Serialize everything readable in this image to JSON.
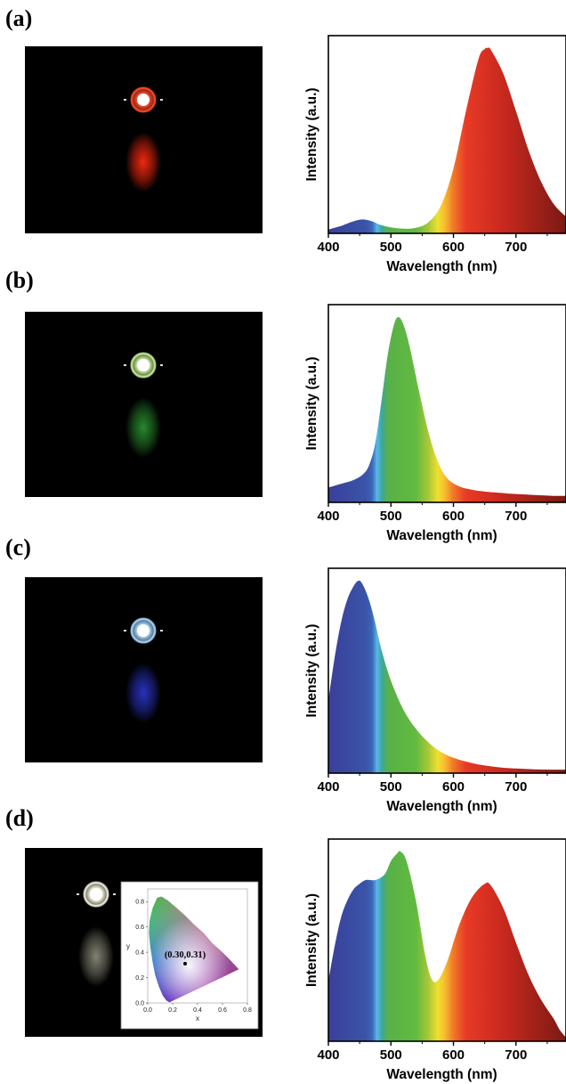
{
  "panels": [
    {
      "label": "(a)",
      "photo": {
        "emitter_color": "#ff4a2a",
        "glow_color": "#ff2a10",
        "description_icon": "red-led-photo"
      },
      "chart_data": {
        "type": "area",
        "xlabel": "Wavelength (nm)",
        "ylabel": "Intensity (a.u.)",
        "xlim": [
          400,
          780
        ],
        "ylim": [
          0,
          1
        ],
        "xticks": [
          400,
          500,
          600,
          700
        ],
        "yticks": [],
        "x": [
          400,
          420,
          440,
          455,
          470,
          480,
          490,
          500,
          520,
          540,
          560,
          580,
          600,
          620,
          640,
          650,
          655,
          660,
          680,
          700,
          720,
          740,
          760,
          780
        ],
        "y": [
          0.02,
          0.04,
          0.065,
          0.075,
          0.065,
          0.05,
          0.04,
          0.032,
          0.025,
          0.03,
          0.06,
          0.15,
          0.35,
          0.66,
          0.94,
          0.995,
          1.0,
          0.99,
          0.86,
          0.66,
          0.45,
          0.28,
          0.16,
          0.09
        ],
        "fill": "spectral"
      }
    },
    {
      "label": "(b)",
      "photo": {
        "emitter_color": "#c8f09a",
        "glow_color": "#2a9030",
        "description_icon": "green-led-photo"
      },
      "chart_data": {
        "type": "area",
        "xlabel": "Wavelength (nm)",
        "ylabel": "Intensity (a.u.)",
        "xlim": [
          400,
          780
        ],
        "ylim": [
          0,
          1
        ],
        "xticks": [
          400,
          500,
          600,
          700
        ],
        "yticks": [],
        "x": [
          400,
          420,
          440,
          455,
          465,
          475,
          485,
          495,
          505,
          512,
          520,
          530,
          545,
          560,
          575,
          590,
          610,
          630,
          650,
          680,
          700,
          730,
          760,
          780
        ],
        "y": [
          0.08,
          0.1,
          0.12,
          0.15,
          0.2,
          0.32,
          0.55,
          0.8,
          0.96,
          1.0,
          0.96,
          0.84,
          0.6,
          0.38,
          0.22,
          0.13,
          0.085,
          0.068,
          0.058,
          0.05,
          0.045,
          0.04,
          0.035,
          0.035
        ],
        "fill": "spectral"
      }
    },
    {
      "label": "(c)",
      "photo": {
        "emitter_color": "#a8d8ff",
        "glow_color": "#2a35c8",
        "description_icon": "blue-led-photo"
      },
      "chart_data": {
        "type": "area",
        "xlabel": "Wavelength (nm)",
        "ylabel": "Intensity (a.u.)",
        "xlim": [
          400,
          780
        ],
        "ylim": [
          0,
          1
        ],
        "xticks": [
          400,
          500,
          600,
          700
        ],
        "yticks": [],
        "x": [
          400,
          410,
          420,
          430,
          440,
          448,
          455,
          465,
          475,
          485,
          500,
          520,
          540,
          560,
          580,
          600,
          620,
          640,
          660,
          680,
          700,
          730,
          760,
          780
        ],
        "y": [
          0.38,
          0.6,
          0.78,
          0.9,
          0.97,
          1.0,
          0.98,
          0.9,
          0.78,
          0.64,
          0.48,
          0.33,
          0.23,
          0.16,
          0.11,
          0.08,
          0.06,
          0.045,
          0.035,
          0.028,
          0.024,
          0.02,
          0.018,
          0.018
        ],
        "fill": "spectral"
      }
    },
    {
      "label": "(d)",
      "photo": {
        "emitter_color": "#f5f0dc",
        "glow_color": "#8a8a7a",
        "description_icon": "white-led-photo"
      },
      "cie_inset": {
        "type": "scatter",
        "xlabel": "x",
        "ylabel": "y",
        "xlim": [
          0,
          0.8
        ],
        "ylim": [
          0,
          0.9
        ],
        "xticks": [
          "0.0",
          "0.2",
          "0.4",
          "0.6",
          "0.8"
        ],
        "yticks": [
          "0.0",
          "0.2",
          "0.4",
          "0.6",
          "0.8"
        ],
        "point": {
          "x": 0.3,
          "y": 0.31,
          "label": "(0.30,0.31)"
        }
      },
      "chart_data": {
        "type": "area",
        "xlabel": "Wavelength (nm)",
        "ylabel": "Intensity (a.u.)",
        "xlim": [
          400,
          780
        ],
        "ylim": [
          0,
          1
        ],
        "xticks": [
          400,
          500,
          600,
          700
        ],
        "yticks": [],
        "x": [
          400,
          410,
          420,
          430,
          440,
          450,
          460,
          475,
          490,
          500,
          510,
          515,
          525,
          540,
          555,
          565,
          575,
          590,
          610,
          630,
          650,
          660,
          680,
          700,
          720,
          740,
          760,
          770,
          780
        ],
        "y": [
          0.32,
          0.5,
          0.65,
          0.74,
          0.8,
          0.83,
          0.85,
          0.85,
          0.88,
          0.95,
          0.99,
          1.0,
          0.95,
          0.74,
          0.45,
          0.33,
          0.32,
          0.42,
          0.62,
          0.76,
          0.83,
          0.82,
          0.7,
          0.52,
          0.35,
          0.22,
          0.12,
          0.06,
          0.02
        ],
        "fill": "spectral"
      }
    }
  ]
}
